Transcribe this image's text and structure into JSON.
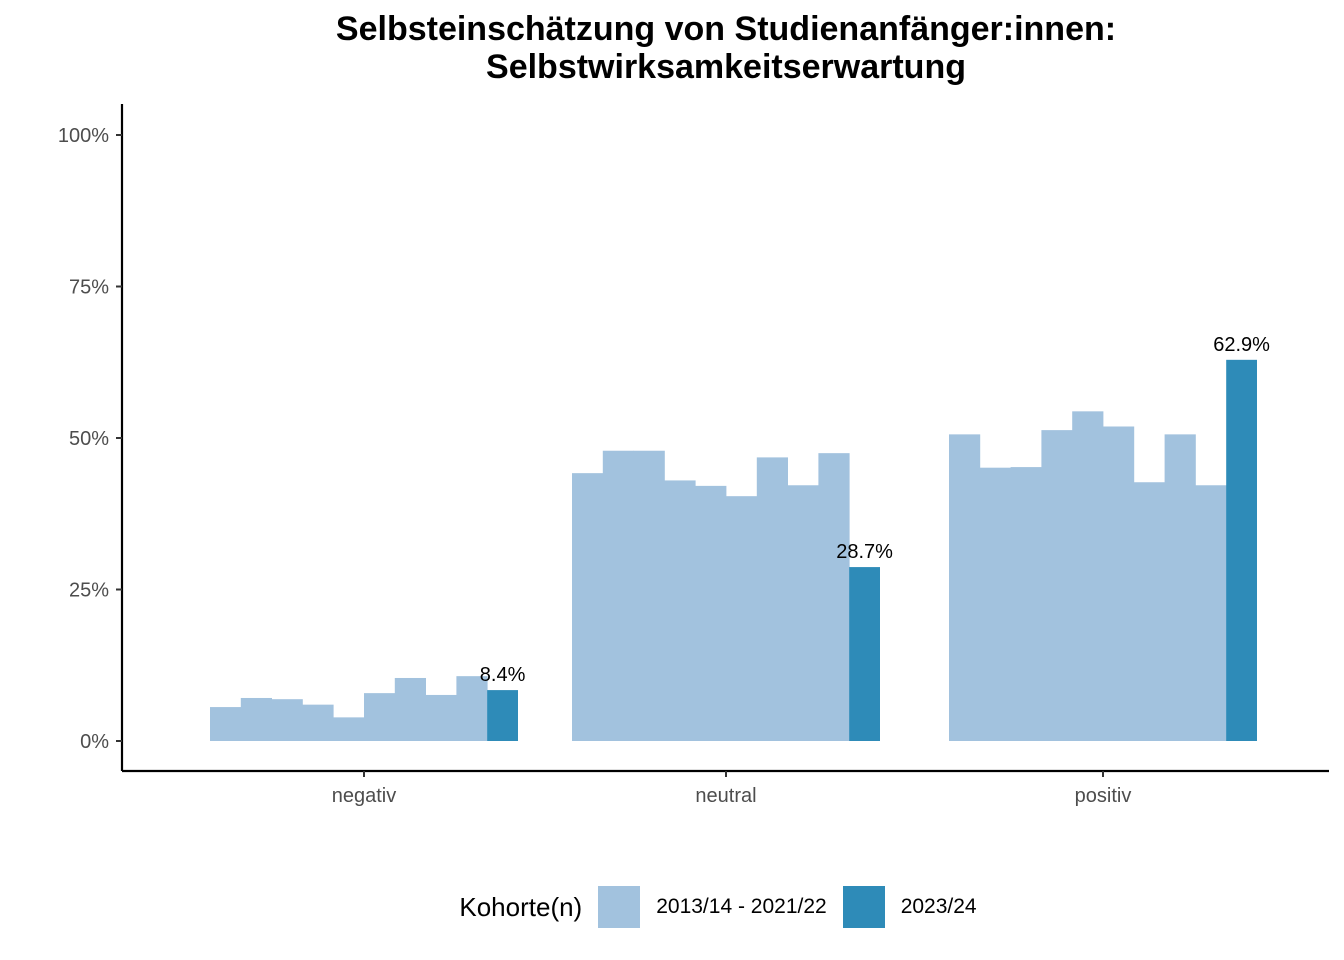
{
  "chart_data": {
    "type": "bar",
    "title_lines": [
      "Selbsteinschätzung von Studienanfänger:innen:",
      "Selbstwirksamkeitserwartung"
    ],
    "categories": [
      "negativ",
      "neutral",
      "positiv"
    ],
    "ylim": [
      0,
      1
    ],
    "yticks": [
      0,
      0.25,
      0.5,
      0.75,
      1.0
    ],
    "ytick_labels": [
      "0%",
      "25%",
      "50%",
      "75%",
      "100%"
    ],
    "series": [
      {
        "name": "2013/14 - 2021/22",
        "color": "#a2c2de",
        "bars_per_category": [
          [
            0.056,
            0.071,
            0.069,
            0.06,
            0.039,
            0.079,
            0.104,
            0.076,
            0.107
          ],
          [
            0.442,
            0.479,
            0.479,
            0.43,
            0.421,
            0.404,
            0.468,
            0.422,
            0.475
          ],
          [
            0.506,
            0.451,
            0.452,
            0.513,
            0.544,
            0.519,
            0.427,
            0.506,
            0.422
          ]
        ]
      },
      {
        "name": "2023/24",
        "color": "#2e8bb8",
        "values": [
          0.084,
          0.287,
          0.629
        ],
        "labels": [
          "8.4%",
          "28.7%",
          "62.9%"
        ]
      }
    ],
    "legend": {
      "title": "Kohorte(n)",
      "position": "bottom",
      "items": [
        "2013/14 - 2021/22",
        "2023/24"
      ]
    }
  }
}
